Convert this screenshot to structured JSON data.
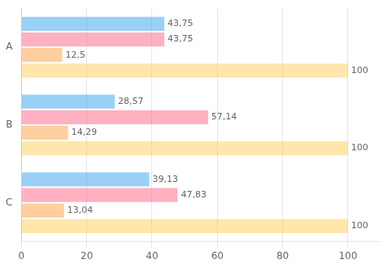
{
  "chart_data": {
    "type": "bar",
    "orientation": "horizontal",
    "categories": [
      "A",
      "B",
      "C"
    ],
    "series": [
      {
        "values": [
          43.75,
          28.57,
          39.13
        ],
        "value_labels": [
          "43,75",
          "28,57",
          "39,13"
        ]
      },
      {
        "values": [
          43.75,
          57.14,
          47.83
        ],
        "value_labels": [
          "43,75",
          "57,14",
          "47,83"
        ]
      },
      {
        "values": [
          12.5,
          14.29,
          13.04
        ],
        "value_labels": [
          "12,5",
          "14,29",
          "13,04"
        ]
      },
      {
        "values": [
          100.0,
          100.0,
          100.0
        ],
        "value_labels": [
          "100",
          "100",
          "100"
        ]
      }
    ],
    "xlim": [
      0,
      110
    ],
    "xticks": [
      0,
      20,
      40,
      60,
      80,
      100
    ],
    "grid": true,
    "data_labels": true
  }
}
